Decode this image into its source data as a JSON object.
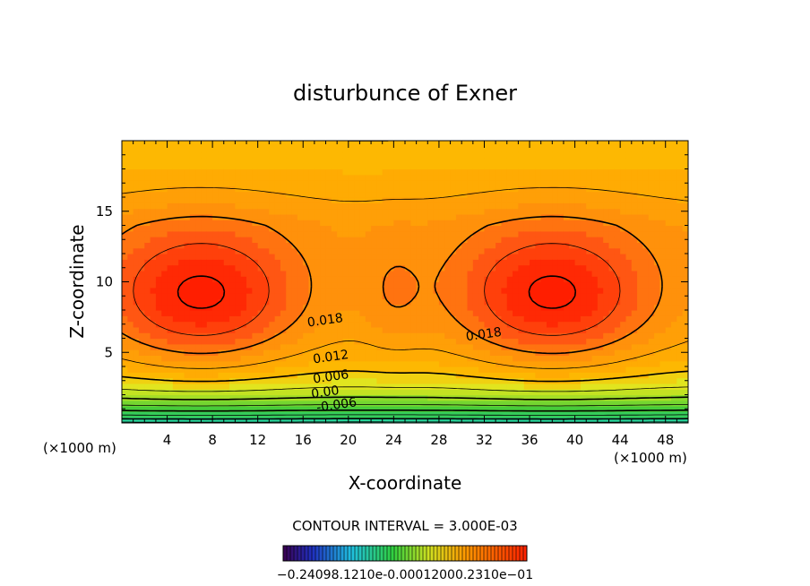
{
  "chart_data": {
    "type": "contour",
    "title": "disturbunce of Exner",
    "xlabel": "X-coordinate",
    "ylabel": "Z-coordinate",
    "x_unit": "(×1000 m)",
    "y_unit": "(×1000 m)",
    "xlim": [
      0,
      50
    ],
    "ylim": [
      0,
      20
    ],
    "x_ticks": [
      4,
      8,
      12,
      16,
      20,
      24,
      28,
      32,
      36,
      40,
      44,
      48
    ],
    "y_ticks": [
      5,
      10,
      15
    ],
    "contour_interval_label": "CONTOUR INTERVAL = 3.000E-03",
    "contour_labels": [
      {
        "text": "0.018",
        "x": 18,
        "z": 7.0
      },
      {
        "text": "0.018",
        "x": 32,
        "z": 6.0
      },
      {
        "text": "0.012",
        "x": 18.5,
        "z": 4.4
      },
      {
        "text": "0.006",
        "x": 18.5,
        "z": 3.0
      },
      {
        "text": "0.00",
        "x": 18,
        "z": 1.9
      },
      {
        "text": "-0.006",
        "x": 19,
        "z": 1.0
      }
    ],
    "colorbar_label": "−0.24098.1210e-0.00012000.2310e−01",
    "field": {
      "description_visible": "maxima near (7,9) and (38,9), low values near surface",
      "max_value": 0.024,
      "min_value": -0.012
    }
  }
}
